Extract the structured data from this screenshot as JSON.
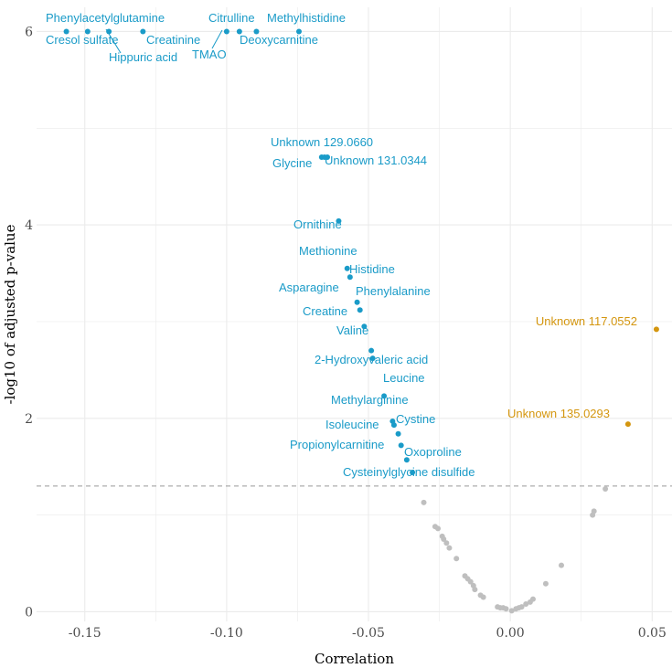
{
  "chart_data": {
    "type": "scatter",
    "xlabel": "Correlation",
    "ylabel": "-log10 of adjusted p-value",
    "xlim": [
      -0.167,
      0.057
    ],
    "ylim": [
      -0.1,
      6.25
    ],
    "x_ticks": [
      -0.15,
      -0.1,
      -0.05,
      0.0,
      0.05
    ],
    "x_tick_labels": [
      "-0.15",
      "-0.10",
      "-0.05",
      "0.00",
      "0.05"
    ],
    "y_ticks": [
      0,
      2,
      4,
      6
    ],
    "y_tick_labels": [
      "0",
      "2",
      "4",
      "6"
    ],
    "grid": true,
    "threshold_line": 1.3,
    "colors": {
      "negative": "#1a9bc8",
      "positive": "#d4960f",
      "nonsignificant": "#bfbfbf",
      "threshold": "#999999",
      "grid": "#ebebeb"
    },
    "significant_points": [
      {
        "label": "Phenylacetylglutamine",
        "x": -0.1565,
        "y": 6.0,
        "group": "negative"
      },
      {
        "label": "Cresol sulfate",
        "x": -0.149,
        "y": 6.0,
        "group": "negative"
      },
      {
        "label": "Hippuric acid",
        "x": -0.1415,
        "y": 6.0,
        "group": "negative"
      },
      {
        "label": "Creatinine",
        "x": -0.1295,
        "y": 6.0,
        "group": "negative"
      },
      {
        "label": "TMAO",
        "x": -0.1,
        "y": 6.0,
        "group": "negative"
      },
      {
        "label": "Citrulline",
        "x": -0.0955,
        "y": 6.0,
        "group": "negative"
      },
      {
        "label": "Deoxycarnitine",
        "x": -0.0895,
        "y": 6.0,
        "group": "negative"
      },
      {
        "label": "Methylhistidine",
        "x": -0.0745,
        "y": 6.0,
        "group": "negative"
      },
      {
        "label": "Unknown 129.0660",
        "x": -0.0665,
        "y": 4.7,
        "group": "negative"
      },
      {
        "label": "Glycine",
        "x": -0.0655,
        "y": 4.7,
        "group": "negative"
      },
      {
        "label": "Unknown 131.0344",
        "x": -0.0645,
        "y": 4.7,
        "group": "negative"
      },
      {
        "label": "Ornithine",
        "x": -0.0605,
        "y": 4.04,
        "group": "negative"
      },
      {
        "label": "Methionine",
        "x": -0.0575,
        "y": 3.55,
        "group": "negative"
      },
      {
        "label": "Histidine",
        "x": -0.0565,
        "y": 3.46,
        "group": "negative"
      },
      {
        "label": "Asparagine",
        "x": -0.054,
        "y": 3.2,
        "group": "negative"
      },
      {
        "label": "Phenylalanine",
        "x": -0.053,
        "y": 3.12,
        "group": "negative"
      },
      {
        "label": "Creatine",
        "x": -0.0515,
        "y": 2.95,
        "group": "negative"
      },
      {
        "label": "Valine",
        "x": -0.049,
        "y": 2.7,
        "group": "negative"
      },
      {
        "label": "2-Hydroxyvaleric acid",
        "x": -0.0485,
        "y": 2.62,
        "group": "negative"
      },
      {
        "label": "Leucine",
        "x": -0.0445,
        "y": 2.23,
        "group": "negative"
      },
      {
        "label": "Methylarginine",
        "x": -0.0415,
        "y": 1.97,
        "group": "negative"
      },
      {
        "label": "Cystine",
        "x": -0.041,
        "y": 1.93,
        "group": "negative"
      },
      {
        "label": "Isoleucine",
        "x": -0.0395,
        "y": 1.84,
        "group": "negative"
      },
      {
        "label": "Propionylcarnitine",
        "x": -0.0385,
        "y": 1.72,
        "group": "negative"
      },
      {
        "label": "Oxoproline",
        "x": -0.0365,
        "y": 1.57,
        "group": "negative"
      },
      {
        "label": "Cysteinylglycine disulfide",
        "x": -0.0345,
        "y": 1.44,
        "group": "negative"
      },
      {
        "label": "Unknown 117.0552",
        "x": 0.0515,
        "y": 2.92,
        "group": "positive"
      },
      {
        "label": "Unknown 135.0293",
        "x": 0.0415,
        "y": 1.94,
        "group": "positive"
      }
    ],
    "nonsignificant_points": [
      {
        "x": -0.0305,
        "y": 1.13
      },
      {
        "x": -0.0265,
        "y": 0.88
      },
      {
        "x": -0.0255,
        "y": 0.86
      },
      {
        "x": -0.024,
        "y": 0.78
      },
      {
        "x": -0.0235,
        "y": 0.75
      },
      {
        "x": -0.0225,
        "y": 0.71
      },
      {
        "x": -0.0215,
        "y": 0.66
      },
      {
        "x": -0.019,
        "y": 0.55
      },
      {
        "x": -0.016,
        "y": 0.37
      },
      {
        "x": -0.015,
        "y": 0.34
      },
      {
        "x": -0.014,
        "y": 0.31
      },
      {
        "x": -0.013,
        "y": 0.27
      },
      {
        "x": -0.0125,
        "y": 0.23
      },
      {
        "x": -0.0105,
        "y": 0.17
      },
      {
        "x": -0.0095,
        "y": 0.15
      },
      {
        "x": -0.0045,
        "y": 0.05
      },
      {
        "x": -0.0035,
        "y": 0.04
      },
      {
        "x": -0.0025,
        "y": 0.04
      },
      {
        "x": -0.0015,
        "y": 0.03
      },
      {
        "x": 0.0005,
        "y": 0.01
      },
      {
        "x": 0.002,
        "y": 0.03
      },
      {
        "x": 0.003,
        "y": 0.04
      },
      {
        "x": 0.004,
        "y": 0.05
      },
      {
        "x": 0.0055,
        "y": 0.08
      },
      {
        "x": 0.007,
        "y": 0.1
      },
      {
        "x": 0.008,
        "y": 0.13
      },
      {
        "x": 0.0125,
        "y": 0.29
      },
      {
        "x": 0.018,
        "y": 0.48
      },
      {
        "x": 0.029,
        "y": 1.0
      },
      {
        "x": 0.0295,
        "y": 1.04
      },
      {
        "x": 0.0335,
        "y": 1.27
      }
    ]
  }
}
